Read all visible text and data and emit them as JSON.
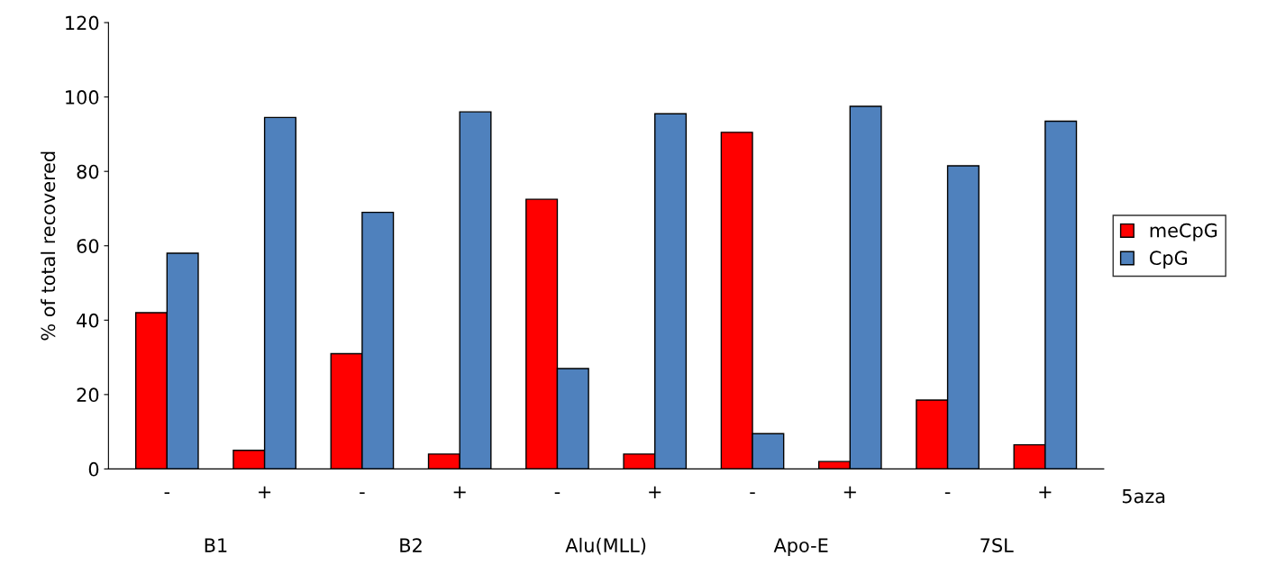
{
  "chart_data": {
    "type": "bar",
    "ylabel": "% of total recovered",
    "categories": [
      "-",
      "+",
      "-",
      "+",
      "-",
      "+",
      "-",
      "+",
      "-",
      "+"
    ],
    "series": [
      {
        "name": "meCpG",
        "color": "#ff0000",
        "values": [
          42,
          5,
          31,
          4,
          72.5,
          4,
          90.5,
          2,
          18.5,
          6.5
        ]
      },
      {
        "name": "CpG",
        "color": "#4f81bd",
        "values": [
          58,
          94.5,
          69,
          96,
          27,
          95.5,
          9.5,
          97.5,
          81.5,
          93.5
        ]
      }
    ],
    "ylim": [
      0,
      120
    ],
    "yticks": [
      0,
      20,
      40,
      60,
      80,
      100,
      120
    ],
    "grid": false,
    "legend": "right",
    "annotations": [
      "B1",
      "B2",
      "Alu(MLL)",
      "Apo-E",
      "7SL",
      "5aza"
    ]
  }
}
